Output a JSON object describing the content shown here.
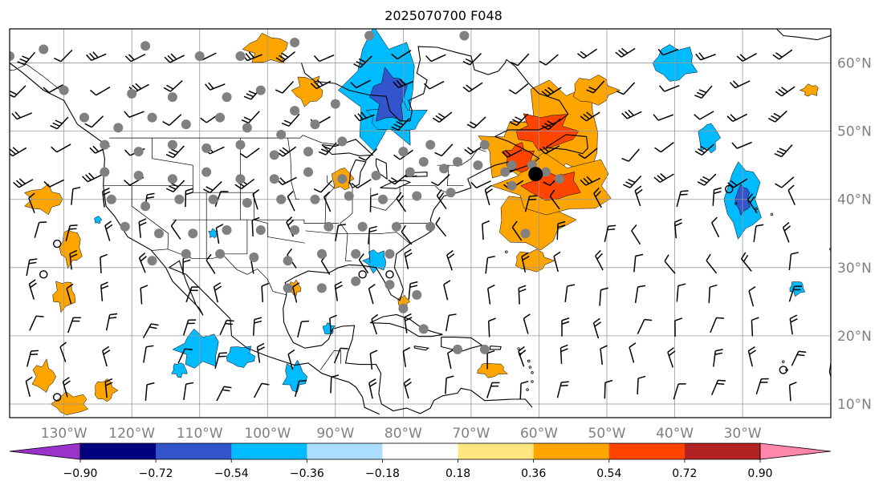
{
  "title": "2025070700 F048",
  "map": {
    "projection": "PlateCarree",
    "extent_lon": [
      -138,
      -17
    ],
    "extent_lat": [
      8,
      65
    ],
    "lon_ticks": [
      -130,
      -120,
      -110,
      -100,
      -90,
      -80,
      -70,
      -60,
      -50,
      -40,
      -30
    ],
    "lon_labels": [
      "130°W",
      "120°W",
      "110°W",
      "100°W",
      "90°W",
      "80°W",
      "70°W",
      "60°W",
      "50°W",
      "40°W",
      "30°W"
    ],
    "lat_ticks": [
      10,
      20,
      30,
      40,
      50,
      60
    ],
    "lat_labels": [
      "10°N",
      "20°N",
      "30°N",
      "40°N",
      "50°N",
      "60°N"
    ],
    "grid": true,
    "label_color": "#808080"
  },
  "colorbar": {
    "orientation": "horizontal",
    "extend": "both",
    "tick_labels": [
      "−0.90",
      "−0.72",
      "−0.54",
      "−0.36",
      "−0.18",
      "0.18",
      "0.36",
      "0.54",
      "0.72",
      "0.90"
    ],
    "colors": [
      "#9933cc",
      "#000080",
      "#3355cc",
      "#00bbff",
      "#aaddff",
      "#ffffff",
      "#ffe680",
      "#ffa500",
      "#ff4400",
      "#b22222",
      "#ff88aa"
    ]
  },
  "fields": {
    "shading_colors": {
      "pos_low": "#ffa500",
      "pos_mid": "#ff4400",
      "neg_low": "#00bbff",
      "neg_mid": "#3355cc"
    },
    "station_marker_color": "#808080",
    "highlight_marker_color": "#000000"
  }
}
